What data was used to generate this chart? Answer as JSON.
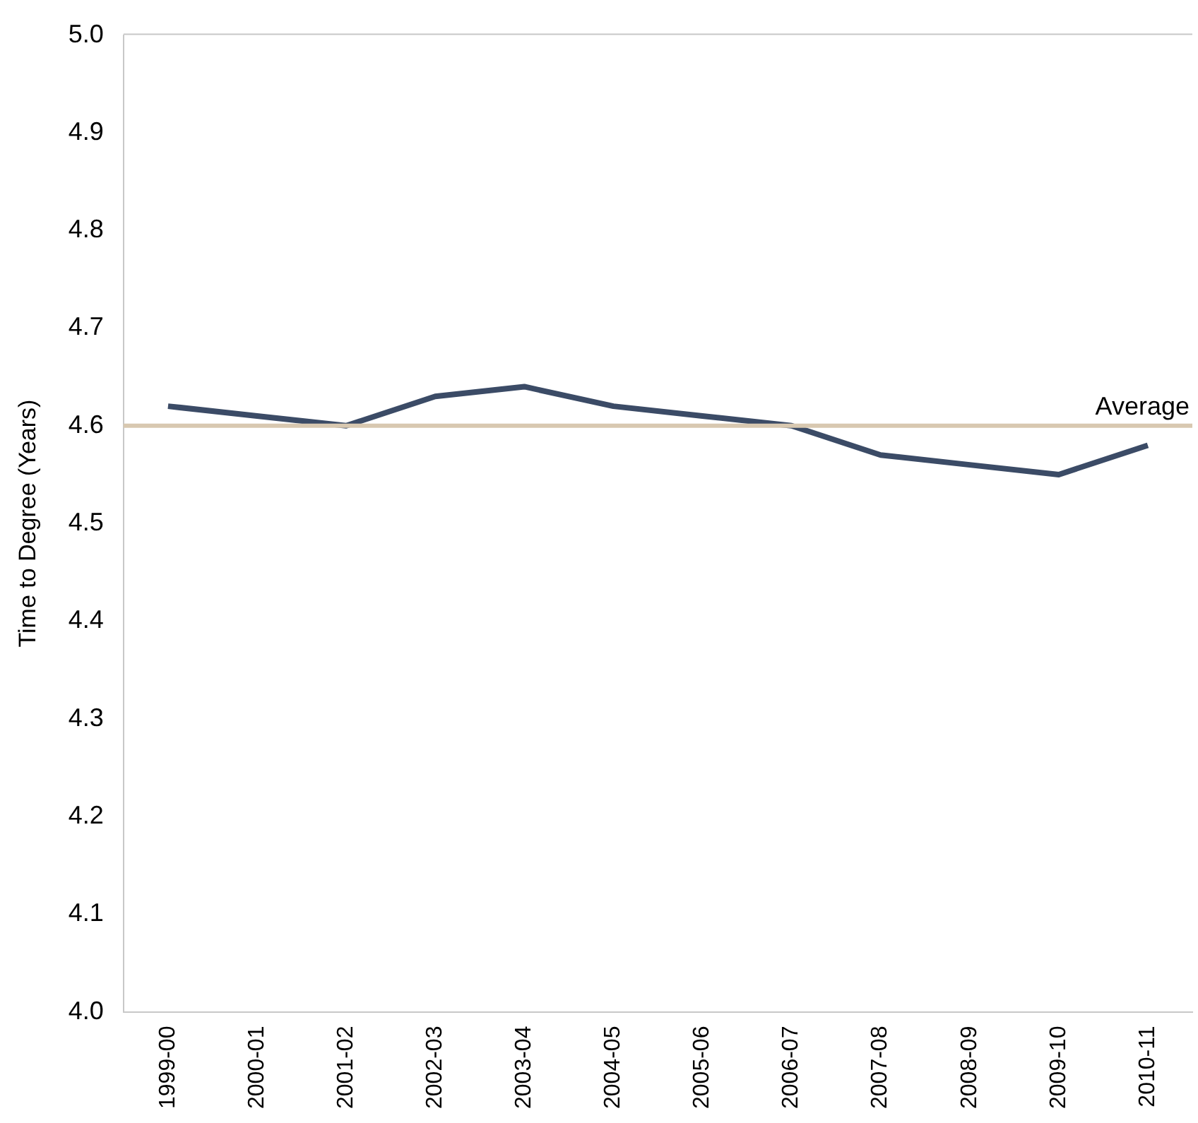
{
  "chart_data": {
    "type": "line",
    "ylabel": "Time to Degree (Years)",
    "categories": [
      "1999-00",
      "2000-01",
      "2001-02",
      "2002-03",
      "2003-04",
      "2004-05",
      "2005-06",
      "2006-07",
      "2007-08",
      "2008-09",
      "2009-10",
      "2010-11"
    ],
    "series": [
      {
        "color": "#3b4b66",
        "values": [
          4.62,
          4.61,
          4.6,
          4.63,
          4.64,
          4.62,
          4.61,
          4.6,
          4.57,
          4.56,
          4.55,
          4.58
        ]
      }
    ],
    "ylim": [
      4.0,
      5.0
    ],
    "yticks": [
      {
        "value": 4.0,
        "label": "4.0"
      },
      {
        "value": 4.1,
        "label": "4.1"
      },
      {
        "value": 4.2,
        "label": "4.2"
      },
      {
        "value": 4.3,
        "label": "4.3"
      },
      {
        "value": 4.4,
        "label": "4.4"
      },
      {
        "value": 4.5,
        "label": "4.5"
      },
      {
        "value": 4.6,
        "label": "4.6"
      },
      {
        "value": 4.7,
        "label": "4.7"
      },
      {
        "value": 4.8,
        "label": "4.8"
      },
      {
        "value": 4.9,
        "label": "4.9"
      },
      {
        "value": 5.0,
        "label": "5.0"
      }
    ],
    "ref_lines": [
      {
        "axis": "y",
        "value": 4.6,
        "label": "Average",
        "color": "#d8c8b0"
      }
    ],
    "grid": false,
    "legend": false,
    "marker": "none",
    "line_style": "solid"
  }
}
